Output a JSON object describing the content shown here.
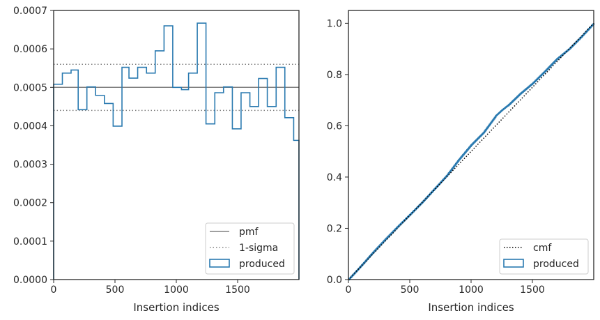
{
  "chart_data": [
    {
      "type": "histogram",
      "xlabel": "Insertion indices",
      "ylabel": "",
      "xlim": [
        0,
        2000
      ],
      "ylim": [
        0,
        0.0007
      ],
      "xticks": [
        "0",
        "500",
        "1000",
        "1500"
      ],
      "yticks": [
        "0.0000",
        "0.0001",
        "0.0002",
        "0.0003",
        "0.0004",
        "0.0005",
        "0.0006",
        "0.0007"
      ],
      "grid": false,
      "legend_position": "bottom-right",
      "pmf": 0.0005,
      "sigma_band": [
        0.00044,
        0.00056
      ],
      "bin_edges": [
        0,
        71,
        142,
        200,
        271,
        342,
        414,
        485,
        557,
        614,
        685,
        757,
        828,
        900,
        971,
        1042,
        1100,
        1171,
        1242,
        1314,
        1385,
        1457,
        1528,
        1600,
        1671,
        1742,
        1814,
        1885,
        1957,
        2000
      ],
      "bin_values": [
        0.000508,
        0.000537,
        0.000545,
        0.000442,
        0.000501,
        0.000479,
        0.000458,
        0.000399,
        0.000552,
        0.000524,
        0.000552,
        0.000537,
        0.000595,
        0.00066,
        0.0005,
        0.000494,
        0.000537,
        0.000667,
        0.000405,
        0.000486,
        0.000501,
        0.000392,
        0.000486,
        0.00045,
        0.000523,
        0.00045,
        0.000552,
        0.000421,
        0.000362
      ],
      "series": [
        {
          "name": "pmf",
          "color": "#808080",
          "style": "solid"
        },
        {
          "name": "1-sigma",
          "color": "#808080",
          "style": "dotted"
        },
        {
          "name": "produced",
          "color": "#2a7ab0",
          "style": "step"
        }
      ]
    },
    {
      "type": "line",
      "xlabel": "Insertion indices",
      "ylabel": "",
      "xlim": [
        0,
        2000
      ],
      "ylim": [
        0,
        1.05
      ],
      "xticks": [
        "0",
        "500",
        "1000",
        "1500"
      ],
      "yticks": [
        "0.0",
        "0.2",
        "0.4",
        "0.6",
        "0.8",
        "1.0"
      ],
      "grid": false,
      "legend_position": "bottom-right",
      "series": [
        {
          "name": "cmf",
          "color": "#000000",
          "style": "dotted",
          "x": [
            0,
            2000
          ],
          "y": [
            0,
            1.0
          ]
        },
        {
          "name": "produced",
          "color": "#2a7ab0",
          "style": "step",
          "x": [
            0,
            100,
            200,
            300,
            400,
            500,
            600,
            700,
            800,
            900,
            1000,
            1100,
            1200,
            1250,
            1300,
            1400,
            1500,
            1600,
            1700,
            1800,
            1900,
            2000
          ],
          "y": [
            0,
            0.052,
            0.106,
            0.157,
            0.206,
            0.253,
            0.301,
            0.353,
            0.405,
            0.468,
            0.525,
            0.573,
            0.638,
            0.66,
            0.679,
            0.725,
            0.765,
            0.812,
            0.861,
            0.9,
            0.948,
            1.0
          ]
        }
      ]
    }
  ]
}
